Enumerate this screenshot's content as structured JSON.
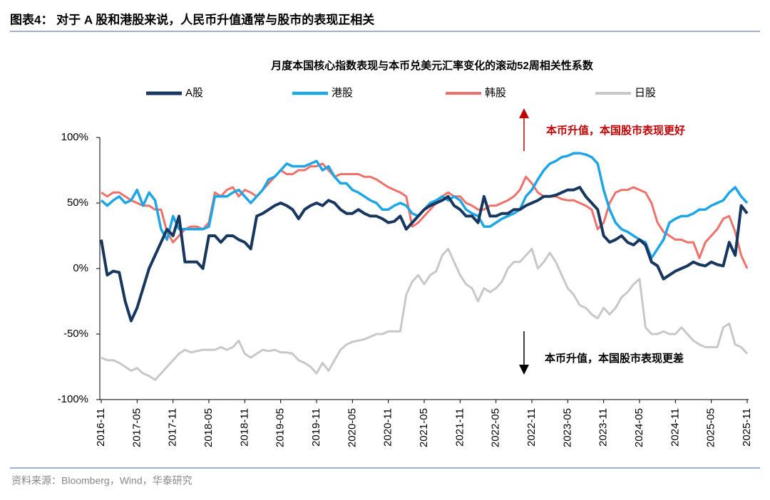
{
  "chart_data": {
    "type": "line",
    "heading": "图表4：  对于 A 股和港股来说，人民币升值通常与股市的表现正相关",
    "title": "月度本国核心指数表现与本币兑美元汇率变化的滚动52周相关性系数",
    "source": "资料来源：Bloomberg，Wind，华泰研究",
    "annotations": [
      {
        "text": "本币升值，本国股市表现更好",
        "color": "#c00000"
      },
      {
        "text": "本币升值，本国股市表现更差",
        "color": "#000000"
      }
    ],
    "categories": [
      "2016-11",
      null,
      null,
      null,
      null,
      null,
      "2017-05",
      null,
      null,
      null,
      null,
      null,
      "2017-11",
      null,
      null,
      null,
      null,
      null,
      "2018-05",
      null,
      null,
      null,
      null,
      null,
      "2018-11",
      null,
      null,
      null,
      null,
      null,
      "2019-05",
      null,
      null,
      null,
      null,
      null,
      "2019-11",
      null,
      null,
      null,
      null,
      null,
      "2020-05",
      null,
      null,
      null,
      null,
      null,
      "2020-11",
      null,
      null,
      null,
      null,
      null,
      "2021-05",
      null,
      null,
      null,
      null,
      null,
      "2021-11",
      null,
      null,
      null,
      null,
      null,
      "2022-05",
      null,
      null,
      null,
      null,
      null,
      "2022-11",
      null,
      null,
      null,
      null,
      null,
      "2023-05",
      null,
      null,
      null,
      null,
      null,
      "2023-11",
      null,
      null,
      null,
      null,
      null,
      "2024-05",
      null,
      null,
      null,
      null,
      null,
      "2024-11",
      null,
      null,
      null,
      null,
      null,
      "2025-05",
      null,
      null,
      null,
      null,
      null,
      "2025-11"
    ],
    "series": [
      {
        "name": "A股",
        "color": "#17375e",
        "width": 4,
        "values": [
          22,
          -5,
          -2,
          -3,
          -25,
          -40,
          -30,
          -15,
          0,
          10,
          20,
          30,
          25,
          40,
          5,
          5,
          5,
          0,
          25,
          25,
          20,
          25,
          25,
          22,
          20,
          15,
          40,
          42,
          45,
          48,
          50,
          48,
          45,
          38,
          45,
          48,
          50,
          48,
          52,
          50,
          45,
          42,
          42,
          45,
          42,
          40,
          40,
          38,
          35,
          36,
          40,
          30,
          35,
          40,
          45,
          48,
          50,
          52,
          55,
          48,
          45,
          40,
          40,
          35,
          55,
          40,
          40,
          42,
          42,
          45,
          45,
          48,
          50,
          52,
          55,
          55,
          56,
          58,
          60,
          60,
          62,
          55,
          50,
          45,
          25,
          20,
          22,
          25,
          20,
          18,
          22,
          18,
          5,
          2,
          -8,
          -5,
          -2,
          0,
          2,
          5,
          3,
          2,
          5,
          3,
          2,
          20,
          10,
          48,
          42
        ]
      },
      {
        "name": "港股",
        "color": "#1ea5e6",
        "width": 3.5,
        "values": [
          52,
          48,
          52,
          55,
          50,
          52,
          60,
          48,
          58,
          52,
          30,
          22,
          40,
          30,
          30,
          30,
          30,
          30,
          32,
          55,
          55,
          55,
          58,
          60,
          55,
          50,
          55,
          60,
          68,
          70,
          75,
          80,
          78,
          78,
          78,
          80,
          82,
          75,
          78,
          70,
          65,
          65,
          60,
          58,
          55,
          52,
          50,
          45,
          45,
          48,
          50,
          48,
          42,
          40,
          45,
          50,
          52,
          55,
          52,
          55,
          52,
          45,
          42,
          40,
          32,
          32,
          35,
          38,
          40,
          42,
          45,
          55,
          60,
          68,
          75,
          80,
          82,
          85,
          86,
          88,
          88,
          87,
          85,
          80,
          60,
          45,
          35,
          30,
          28,
          25,
          22,
          20,
          8,
          15,
          22,
          35,
          38,
          40,
          40,
          42,
          45,
          45,
          48,
          50,
          52,
          58,
          62,
          55,
          50
        ]
      },
      {
        "name": "韩股",
        "color": "#f0706a",
        "width": 3,
        "values": [
          58,
          55,
          58,
          58,
          55,
          52,
          50,
          48,
          48,
          45,
          45,
          28,
          20,
          25,
          30,
          32,
          32,
          30,
          35,
          58,
          55,
          60,
          62,
          55,
          60,
          58,
          55,
          60,
          65,
          70,
          75,
          72,
          72,
          75,
          75,
          78,
          78,
          80,
          75,
          70,
          72,
          72,
          72,
          72,
          70,
          70,
          68,
          65,
          62,
          60,
          58,
          55,
          32,
          35,
          40,
          45,
          50,
          55,
          58,
          55,
          55,
          50,
          48,
          45,
          45,
          48,
          48,
          50,
          52,
          55,
          60,
          70,
          65,
          58,
          55,
          55,
          55,
          53,
          52,
          52,
          50,
          48,
          45,
          30,
          35,
          50,
          58,
          60,
          60,
          62,
          60,
          58,
          50,
          35,
          28,
          25,
          22,
          22,
          20,
          20,
          8,
          20,
          25,
          30,
          38,
          40,
          28,
          10,
          0
        ]
      },
      {
        "name": "日股",
        "color": "#c8c8c8",
        "width": 3,
        "values": [
          -68,
          -70,
          -70,
          -72,
          -75,
          -78,
          -76,
          -80,
          -82,
          -85,
          -80,
          -75,
          -70,
          -65,
          -62,
          -64,
          -63,
          -62,
          -62,
          -62,
          -60,
          -62,
          -60,
          -55,
          -65,
          -68,
          -65,
          -62,
          -63,
          -62,
          -64,
          -64,
          -65,
          -70,
          -72,
          -75,
          -80,
          -72,
          -78,
          -70,
          -62,
          -58,
          -56,
          -55,
          -54,
          -52,
          -50,
          -50,
          -48,
          -48,
          -48,
          -20,
          -10,
          -5,
          -12,
          -5,
          -2,
          10,
          15,
          5,
          -5,
          -12,
          -15,
          -25,
          -15,
          -18,
          -15,
          -10,
          0,
          5,
          5,
          10,
          15,
          0,
          5,
          12,
          5,
          -5,
          -15,
          -20,
          -28,
          -30,
          -35,
          -38,
          -30,
          -35,
          -30,
          -22,
          -18,
          -12,
          -8,
          -45,
          -50,
          -50,
          -48,
          -50,
          -50,
          -45,
          -50,
          -55,
          -58,
          -60,
          -60,
          -60,
          -45,
          -42,
          -58,
          -60,
          -65
        ]
      }
    ],
    "ylim": [
      -100,
      100
    ],
    "yticks": [
      {
        "value": -100,
        "label": "-100%"
      },
      {
        "value": -50,
        "label": "-50%"
      },
      {
        "value": 0,
        "label": "0%"
      },
      {
        "value": 50,
        "label": "50%"
      },
      {
        "value": 100,
        "label": "100%"
      }
    ],
    "grid": false
  }
}
